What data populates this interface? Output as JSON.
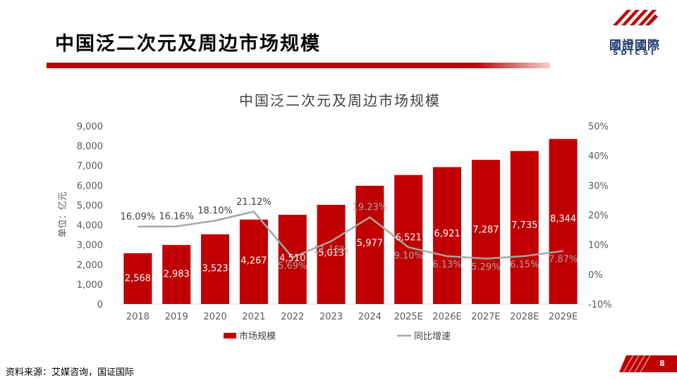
{
  "slide": {
    "title": "中国泛二次元及周边市场规模",
    "source": "资料来源：艾媒咨询，国证国际",
    "page_number": "8",
    "logo_cn": "國證國際",
    "logo_en": "SDICSI"
  },
  "colors": {
    "accent": "#c00000",
    "line": "#a6a6a6",
    "brand_blue": "#1f3a6e"
  },
  "chart_data": {
    "type": "bar",
    "title": "中国泛二次元及周边市场规模",
    "ylabel": "单位：亿元",
    "categories": [
      "2018",
      "2019",
      "2020",
      "2021",
      "2022",
      "2023",
      "2024",
      "2025E",
      "2026E",
      "2027E",
      "2028E",
      "2029E"
    ],
    "series": [
      {
        "name": "市场规模",
        "type": "bar",
        "axis": "left",
        "color": "#c00000",
        "values": [
          2568,
          2983,
          3523,
          4267,
          4510,
          5013,
          5977,
          6521,
          6921,
          7287,
          7735,
          8344
        ],
        "labels": [
          "2,568",
          "2,983",
          "3,523",
          "4,267",
          "4,510",
          "5,013",
          "5,977",
          "6,521",
          "6,921",
          "7,287",
          "7,735",
          "8,344"
        ]
      },
      {
        "name": "同比增速",
        "type": "line",
        "axis": "right",
        "color": "#a6a6a6",
        "values": [
          16.09,
          16.16,
          18.1,
          21.12,
          5.69,
          11.15,
          19.23,
          9.1,
          6.13,
          5.29,
          6.15,
          7.87
        ],
        "labels": [
          "16.09%",
          "16.16%",
          "18.10%",
          "21.12%",
          "5.69%",
          "11.15%",
          "19.23%",
          "9.10%",
          "6.13%",
          "5.29%",
          "6.15%",
          "7.87%"
        ]
      }
    ],
    "y_left": {
      "min": 0,
      "max": 9000,
      "ticks": [
        "0",
        "1,000",
        "2,000",
        "3,000",
        "4,000",
        "5,000",
        "6,000",
        "7,000",
        "8,000",
        "9,000"
      ]
    },
    "y_right": {
      "min": -10,
      "max": 50,
      "ticks": [
        "-10%",
        "0%",
        "10%",
        "20%",
        "30%",
        "40%",
        "50%"
      ]
    },
    "grid": false,
    "legend": "bottom"
  }
}
